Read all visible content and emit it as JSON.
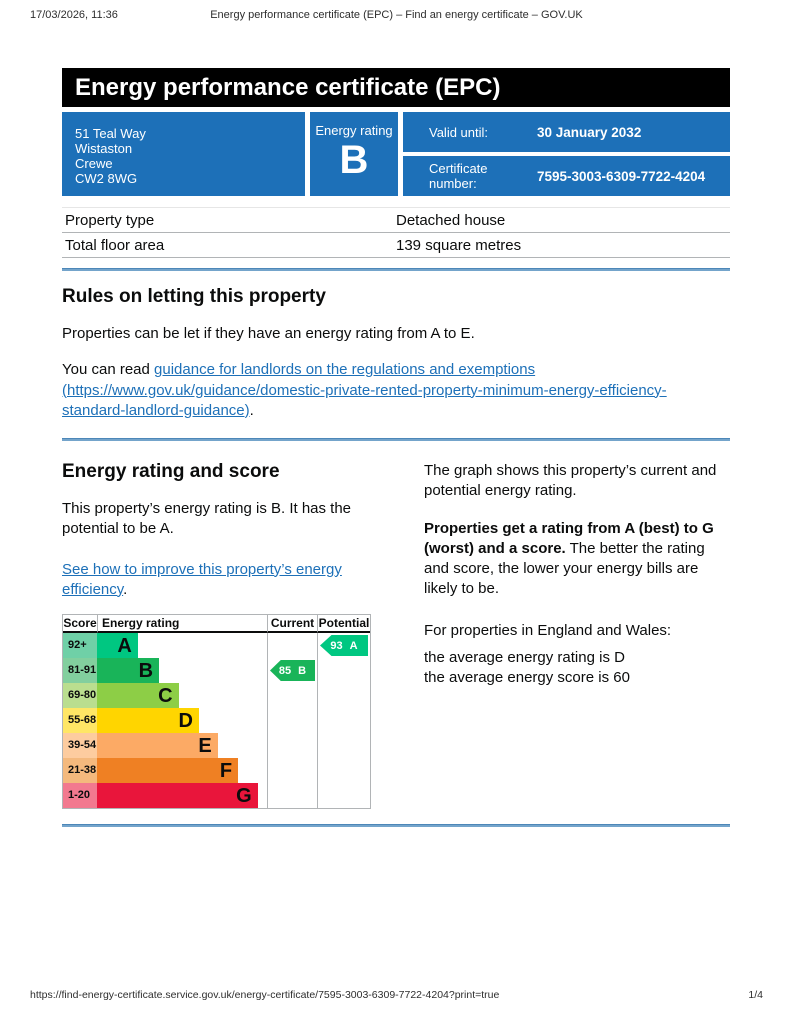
{
  "print_header": {
    "datetime": "17/03/2026, 11:36",
    "title": "Energy performance certificate (EPC) – Find an energy certificate – GOV.UK"
  },
  "banner": {
    "title": "Energy performance certificate (EPC)"
  },
  "summary": {
    "address_lines": [
      "51 Teal Way",
      "Wistaston",
      "Crewe",
      "CW2 8WG"
    ],
    "energy_rating_label": "Energy rating",
    "energy_rating": "B",
    "valid_until_label": "Valid until:",
    "valid_until": "30 January 2032",
    "certificate_number_label": "Certificate number:",
    "certificate_number": "7595-3003-6309-7722-4204",
    "box_color": "#1d70b8"
  },
  "property_table": {
    "rows": [
      {
        "label": "Property type",
        "value": "Detached house"
      },
      {
        "label": "Total floor area",
        "value": "139 square metres"
      }
    ]
  },
  "letting_rules": {
    "heading": "Rules on letting this property",
    "paragraph": "Properties can be let if they have an energy rating from A to E.",
    "link_prefix": "You can read ",
    "link_text": "guidance for landlords on the regulations and exemptions (https://www.gov.uk/guidance/domestic-private-rented-property-minimum-energy-efficiency-standard-landlord-guidance)",
    "link_suffix": "."
  },
  "rating_section": {
    "heading": "Energy rating and score",
    "summary_text": "This property’s energy rating is B. It has the potential to be A.",
    "improve_link_text": "See how to improve this property’s energy efficiency",
    "improve_link_suffix": ".",
    "right_col": {
      "p1": "The graph shows this property’s current and potential energy rating.",
      "p2_bold": "Properties get a rating from A (best) to G (worst) and a score.",
      "p2_rest": " The better the rating and score, the lower your energy bills are likely to be.",
      "p3": "For properties in England and Wales:",
      "p4_line1": "the average energy rating is D",
      "p4_line2": "the average energy score is 60"
    }
  },
  "chart_data": {
    "type": "bar",
    "title": "Energy rating and score (EPC bands)",
    "headers": {
      "score": "Score",
      "rating": "Energy rating",
      "current": "Current",
      "potential": "Potential"
    },
    "bands": [
      {
        "score": "92+",
        "letter": "A",
        "color": "#00c781",
        "tint": "#6fd0a7",
        "width_pct": 24
      },
      {
        "score": "81-91",
        "letter": "B",
        "color": "#19b459",
        "tint": "#82cf9e",
        "width_pct": 36.5
      },
      {
        "score": "69-80",
        "letter": "C",
        "color": "#8dce46",
        "tint": "#bade8f",
        "width_pct": 48
      },
      {
        "score": "55-68",
        "letter": "D",
        "color": "#ffd500",
        "tint": "#ffe665",
        "width_pct": 60
      },
      {
        "score": "39-54",
        "letter": "E",
        "color": "#fcaa65",
        "tint": "#fdcc9f",
        "width_pct": 71
      },
      {
        "score": "21-38",
        "letter": "F",
        "color": "#ef8023",
        "tint": "#f4b97d",
        "width_pct": 83
      },
      {
        "score": "1-20",
        "letter": "G",
        "color": "#e9153b",
        "tint": "#f2798f",
        "width_pct": 94.5
      }
    ],
    "current": {
      "score": "85",
      "band": "B",
      "color": "#19b459",
      "row": 1
    },
    "potential": {
      "score": "93",
      "band": "A",
      "color": "#00c781",
      "row": 0
    }
  },
  "print_footer": {
    "url": "https://find-energy-certificate.service.gov.uk/energy-certificate/7595-3003-6309-7722-4204?print=true",
    "page": "1/4"
  }
}
